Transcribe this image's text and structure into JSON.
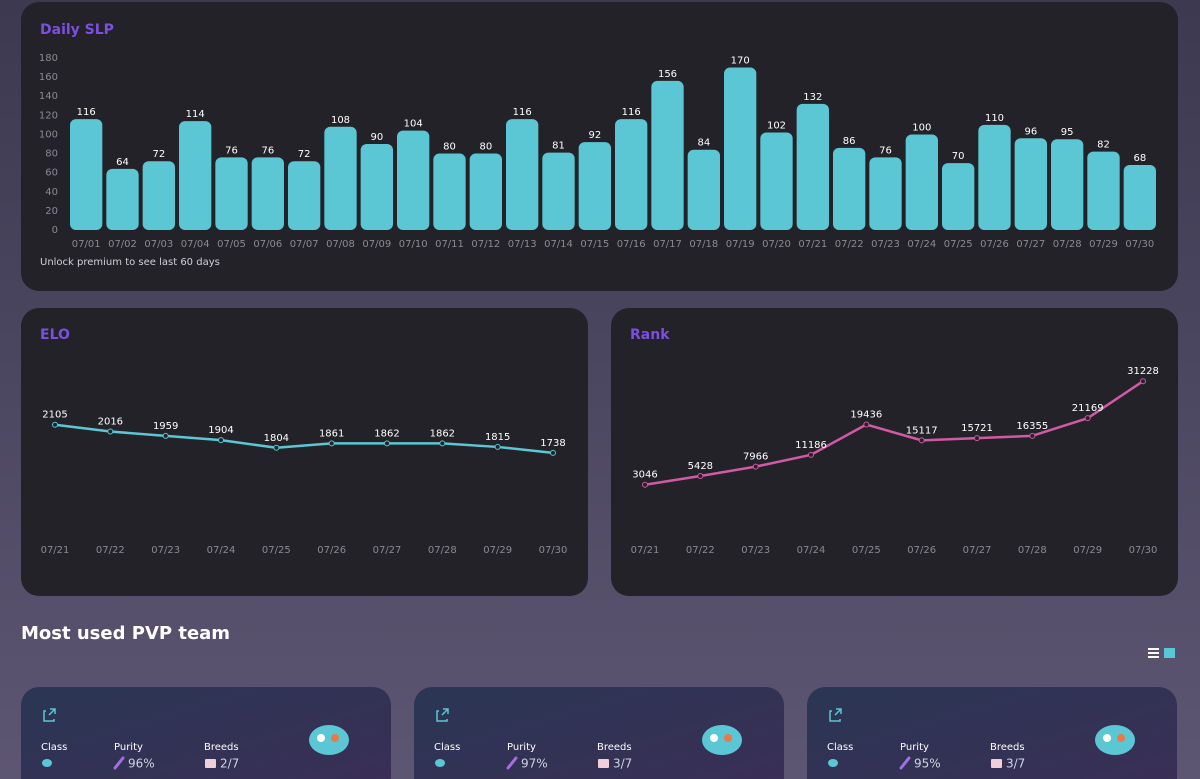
{
  "chart_data": [
    {
      "type": "bar",
      "title": "Daily SLP",
      "note": "Unlock premium to see last 60 days",
      "categories": [
        "07/01",
        "07/02",
        "07/03",
        "07/04",
        "07/05",
        "07/06",
        "07/07",
        "07/08",
        "07/09",
        "07/10",
        "07/11",
        "07/12",
        "07/13",
        "07/14",
        "07/15",
        "07/16",
        "07/17",
        "07/18",
        "07/19",
        "07/20",
        "07/21",
        "07/22",
        "07/23",
        "07/24",
        "07/25",
        "07/26",
        "07/27",
        "07/28",
        "07/29",
        "07/30"
      ],
      "values": [
        116,
        64,
        72,
        114,
        76,
        76,
        72,
        108,
        90,
        104,
        80,
        80,
        116,
        81,
        92,
        116,
        156,
        84,
        170,
        102,
        132,
        86,
        76,
        100,
        70,
        110,
        96,
        95,
        82,
        68
      ],
      "color": "#5bc7d4",
      "ylim": [
        0,
        180
      ],
      "yticks": [
        0,
        20,
        40,
        60,
        80,
        100,
        120,
        140,
        160,
        180
      ]
    },
    {
      "type": "line",
      "title": "ELO",
      "categories": [
        "07/21",
        "07/22",
        "07/23",
        "07/24",
        "07/25",
        "07/26",
        "07/27",
        "07/28",
        "07/29",
        "07/30"
      ],
      "values": [
        2105,
        2016,
        1959,
        1904,
        1804,
        1861,
        1862,
        1862,
        1815,
        1738
      ],
      "color": "#5bc7d4",
      "ylim": [
        600,
        2950
      ]
    },
    {
      "type": "line",
      "title": "Rank",
      "categories": [
        "07/21",
        "07/22",
        "07/23",
        "07/24",
        "07/25",
        "07/26",
        "07/27",
        "07/28",
        "07/29",
        "07/30"
      ],
      "values": [
        3046,
        5428,
        7966,
        11186,
        19436,
        15117,
        15721,
        16355,
        21169,
        31228
      ],
      "color": "#d05aa6",
      "ylim": [
        -12000,
        37000
      ]
    }
  ],
  "team": {
    "title": "Most used PVP team",
    "cards": [
      {
        "class_label": "Class",
        "purity_label": "Purity",
        "purity": "96%",
        "breeds_label": "Breeds",
        "breeds": "2/7"
      },
      {
        "class_label": "Class",
        "purity_label": "Purity",
        "purity": "97%",
        "breeds_label": "Breeds",
        "breeds": "3/7"
      },
      {
        "class_label": "Class",
        "purity_label": "Purity",
        "purity": "95%",
        "breeds_label": "Breeds",
        "breeds": "3/7"
      }
    ]
  }
}
